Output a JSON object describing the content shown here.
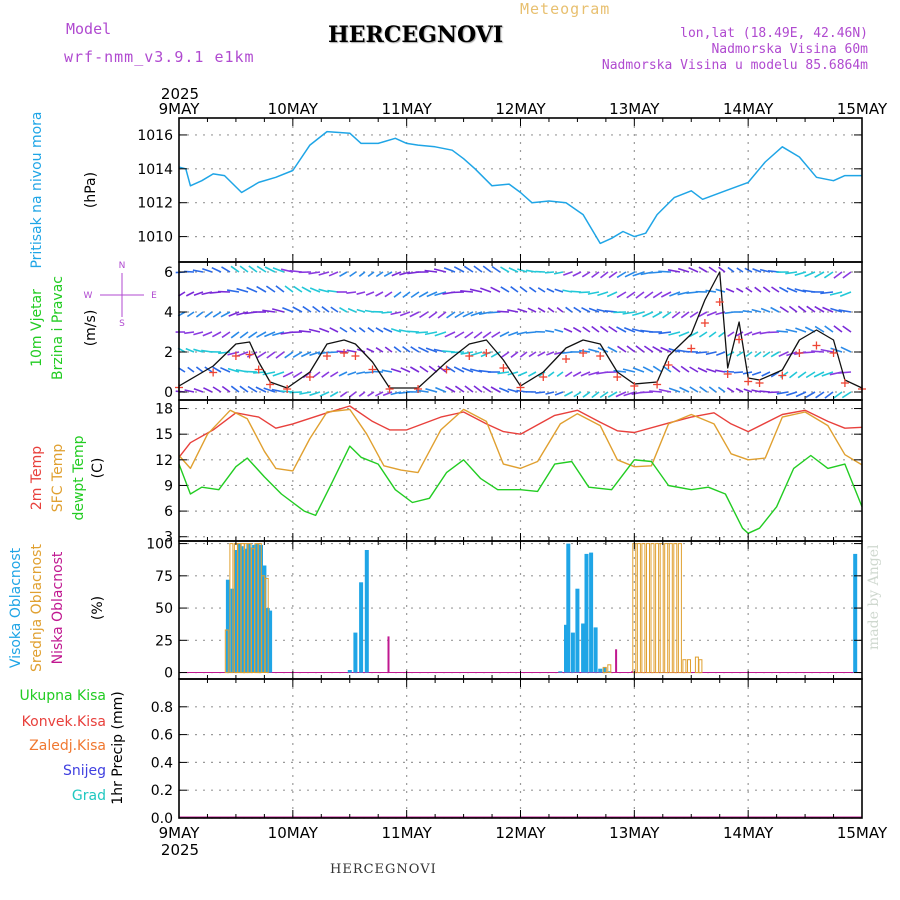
{
  "header": {
    "model_label": "Model",
    "model_name": "wrf-nmm_v3.9.1 e1km",
    "station": "HERCEGNOVI",
    "product": "Meteogram",
    "coords": "lon,lat (18.49E, 42.46N)",
    "elevation": "Nadmorska Visina 60m",
    "model_elevation": "Nadmorska Visina u modelu 85.6864m"
  },
  "footer": {
    "station": "HERCEGNOVI",
    "watermark": "made by Angel"
  },
  "year": "2025",
  "colors": {
    "pressure": "#1fa5e6",
    "t2m": "#e8403c",
    "sfc": "#e0a030",
    "dew": "#22cc22",
    "high_cloud": "#1fa5e6",
    "mid_cloud": "#e0a030",
    "low_cloud": "#c01890",
    "wind_speed": "#111111",
    "gust": "#ee4433"
  },
  "chart_data": [
    {
      "type": "line",
      "name": "pressure",
      "ylabel": [
        "Pritisak na nivou mora",
        "(hPa)"
      ],
      "x_ticks": [
        "9MAY",
        "10MAY",
        "11MAY",
        "12MAY",
        "13MAY",
        "14MAY",
        "15MAY"
      ],
      "ylim": [
        1008.5,
        1017
      ],
      "yticks": [
        1010,
        1012,
        1014,
        1016
      ],
      "grid": true,
      "series": [
        {
          "days": [
            0,
            0.06,
            0.1,
            0.2,
            0.3,
            0.4,
            0.55,
            0.7,
            0.85,
            1.0,
            1.15,
            1.3,
            1.5,
            1.6,
            1.75,
            1.9,
            2.0,
            2.1,
            2.25,
            2.4,
            2.5,
            2.6,
            2.75,
            2.9,
            3.0,
            3.1,
            3.25,
            3.4,
            3.55,
            3.7,
            3.8,
            3.9,
            4.0,
            4.1,
            4.2,
            4.35,
            4.5,
            4.6,
            4.8,
            5.0,
            5.15,
            5.3,
            5.45,
            5.6,
            5.75,
            5.85,
            6.0
          ],
          "values": [
            1014.1,
            1014.0,
            1013.0,
            1013.3,
            1013.7,
            1013.6,
            1012.6,
            1013.2,
            1013.5,
            1013.9,
            1015.4,
            1016.2,
            1016.1,
            1015.5,
            1015.5,
            1015.8,
            1015.5,
            1015.4,
            1015.3,
            1015.1,
            1014.6,
            1014.0,
            1013.0,
            1013.1,
            1012.6,
            1012.0,
            1012.1,
            1012.0,
            1011.3,
            1009.6,
            1009.9,
            1010.3,
            1010.0,
            1010.2,
            1011.3,
            1012.3,
            1012.7,
            1012.2,
            1012.7,
            1013.2,
            1014.4,
            1015.3,
            1014.7,
            1013.5,
            1013.3,
            1013.6,
            1013.6
          ]
        }
      ]
    },
    {
      "type": "line",
      "name": "wind",
      "ylabel": [
        "10m Vjetar",
        "Brzina i Pravac",
        "(m/s)"
      ],
      "compass": [
        "N",
        "W",
        "E",
        "S"
      ],
      "ylim": [
        -0.4,
        6.5
      ],
      "yticks": [
        0,
        2,
        4,
        6
      ],
      "grid": true,
      "series": [
        {
          "name": "speed",
          "days": [
            0,
            0.3,
            0.5,
            0.62,
            0.7,
            0.8,
            0.95,
            1.15,
            1.3,
            1.45,
            1.55,
            1.7,
            1.85,
            2.1,
            2.35,
            2.55,
            2.7,
            2.85,
            3.0,
            3.2,
            3.4,
            3.55,
            3.7,
            3.85,
            4.0,
            4.2,
            4.3,
            4.5,
            4.62,
            4.75,
            4.82,
            4.92,
            5.0,
            5.1,
            5.3,
            5.45,
            5.6,
            5.75,
            5.85,
            6.0
          ],
          "values": [
            0.3,
            1.3,
            2.4,
            2.5,
            1.5,
            0.5,
            0.2,
            1.0,
            2.4,
            2.6,
            2.4,
            1.5,
            0.2,
            0.2,
            1.5,
            2.4,
            2.6,
            1.6,
            0.3,
            1.0,
            2.2,
            2.6,
            2.4,
            1.0,
            0.4,
            0.5,
            1.8,
            2.9,
            4.6,
            6.0,
            1.2,
            3.5,
            0.7,
            0.6,
            1.1,
            2.6,
            3.1,
            2.6,
            0.6,
            0.2
          ]
        }
      ]
    },
    {
      "type": "line",
      "name": "temperature",
      "ylabel": [
        "2m Temp",
        "SFC Temp",
        "dewpt Temp",
        "(C)"
      ],
      "ylim": [
        2.5,
        19
      ],
      "yticks": [
        3,
        6,
        9,
        12,
        15,
        18
      ],
      "grid": true,
      "series": [
        {
          "name": "2m Temp",
          "days": [
            0,
            0.1,
            0.3,
            0.5,
            0.7,
            0.85,
            1.0,
            1.3,
            1.5,
            1.7,
            1.85,
            2.0,
            2.3,
            2.5,
            2.7,
            2.85,
            3.0,
            3.3,
            3.5,
            3.7,
            3.85,
            4.0,
            4.3,
            4.5,
            4.7,
            4.85,
            5.0,
            5.3,
            5.5,
            5.7,
            5.85,
            6.0
          ],
          "values": [
            12.3,
            14.0,
            15.5,
            17.5,
            17.0,
            15.7,
            16.2,
            17.5,
            18.3,
            16.5,
            15.5,
            15.5,
            17.0,
            17.6,
            16.2,
            15.3,
            15.0,
            17.2,
            17.8,
            16.4,
            15.4,
            15.2,
            16.3,
            17.0,
            17.5,
            16.2,
            15.3,
            17.3,
            17.8,
            16.5,
            15.7,
            15.8
          ]
        },
        {
          "name": "SFC Temp",
          "days": [
            0,
            0.1,
            0.25,
            0.45,
            0.6,
            0.75,
            0.85,
            1.0,
            1.15,
            1.3,
            1.5,
            1.65,
            1.8,
            1.95,
            2.1,
            2.3,
            2.5,
            2.7,
            2.85,
            3.0,
            3.15,
            3.35,
            3.5,
            3.7,
            3.85,
            4.0,
            4.15,
            4.3,
            4.5,
            4.7,
            4.85,
            5.0,
            5.15,
            5.3,
            5.5,
            5.7,
            5.85,
            6.0
          ],
          "values": [
            12.5,
            11.0,
            15.0,
            17.8,
            16.8,
            13.0,
            11.0,
            10.7,
            14.5,
            17.6,
            17.9,
            15.0,
            11.3,
            10.8,
            10.5,
            15.5,
            17.9,
            16.5,
            11.5,
            11.0,
            11.8,
            16.2,
            17.4,
            16.0,
            12.0,
            11.2,
            11.3,
            16.2,
            17.3,
            16.2,
            12.7,
            12.0,
            12.2,
            17.0,
            17.6,
            16.0,
            12.6,
            11.4
          ]
        },
        {
          "name": "dewpt Temp",
          "days": [
            0,
            0.1,
            0.2,
            0.35,
            0.5,
            0.6,
            0.75,
            0.9,
            1.1,
            1.2,
            1.35,
            1.5,
            1.6,
            1.75,
            1.9,
            2.05,
            2.2,
            2.35,
            2.5,
            2.65,
            2.8,
            3.0,
            3.15,
            3.3,
            3.45,
            3.6,
            3.8,
            4.0,
            4.15,
            4.3,
            4.5,
            4.65,
            4.8,
            4.95,
            5.0,
            5.1,
            5.25,
            5.4,
            5.55,
            5.7,
            5.85,
            6.0
          ],
          "values": [
            11.5,
            8.0,
            8.8,
            8.5,
            11.2,
            12.2,
            10.0,
            8.0,
            6.0,
            5.5,
            9.5,
            13.6,
            12.3,
            11.5,
            8.5,
            7.0,
            7.5,
            10.5,
            12.0,
            9.8,
            8.5,
            8.5,
            8.3,
            11.5,
            11.8,
            8.8,
            8.5,
            12.0,
            11.8,
            9.0,
            8.5,
            8.8,
            8.0,
            4.0,
            3.4,
            4.0,
            6.5,
            11.0,
            12.5,
            11.0,
            11.5,
            6.5
          ]
        }
      ]
    },
    {
      "type": "bar",
      "name": "cloud",
      "ylabel": [
        "Visoka Oblacnost",
        "Srednja Oblacnost",
        "Niska Oblacnost",
        "(%)"
      ],
      "ylim": [
        -5,
        102
      ],
      "yticks": [
        0,
        25,
        50,
        75,
        100
      ],
      "grid": true,
      "series": [
        {
          "name": "Visoka Oblacnost",
          "days": [
            0.43,
            0.47,
            0.5,
            0.53,
            0.55,
            0.57,
            0.59,
            0.61,
            0.63,
            0.66,
            0.69,
            0.72,
            0.75,
            0.78,
            0.8,
            1.5,
            1.55,
            1.6,
            1.65,
            3.35,
            3.4,
            3.42,
            3.46,
            3.5,
            3.55,
            3.58,
            3.62,
            3.66,
            3.7,
            3.74,
            3.78,
            5.94
          ],
          "values": [
            72,
            65,
            95,
            100,
            98,
            95,
            96,
            100,
            97,
            99,
            100,
            99,
            83,
            50,
            48,
            2,
            31,
            70,
            95,
            1,
            37,
            100,
            31,
            65,
            38,
            92,
            93,
            35,
            3,
            4,
            1,
            92
          ]
        },
        {
          "name": "Srednja Oblacnost",
          "days": [
            0.42,
            0.46,
            0.5,
            0.53,
            0.56,
            0.59,
            0.62,
            0.65,
            0.68,
            0.71,
            0.74,
            0.77,
            3.74,
            3.78,
            4.0,
            4.04,
            4.08,
            4.12,
            4.16,
            4.2,
            4.24,
            4.28,
            4.32,
            4.36,
            4.4,
            4.44,
            4.48,
            4.55,
            4.58
          ],
          "values": [
            33,
            100,
            100,
            100,
            100,
            100,
            100,
            96,
            100,
            100,
            75,
            73,
            4,
            6,
            100,
            100,
            100,
            100,
            100,
            100,
            100,
            100,
            100,
            100,
            100,
            10,
            10,
            12,
            10
          ]
        },
        {
          "name": "Niska Oblacnost",
          "days": [
            1.84,
            3.84,
            3.98
          ],
          "values": [
            28,
            18,
            1
          ]
        }
      ]
    },
    {
      "type": "bar",
      "name": "precip",
      "ylabel": [
        "Ukupna Kisa",
        "Konvek.Kisa",
        "Zaledj.Kisa",
        "Snijeg",
        "Grad",
        "1hr Precip (mm)"
      ],
      "ylim": [
        0,
        1.0
      ],
      "yticks": [
        0.0,
        0.2,
        0.4,
        0.6,
        0.8
      ],
      "x_ticks": [
        "9MAY",
        "10MAY",
        "11MAY",
        "12MAY",
        "13MAY",
        "14MAY",
        "15MAY"
      ],
      "grid": true,
      "series": []
    }
  ]
}
